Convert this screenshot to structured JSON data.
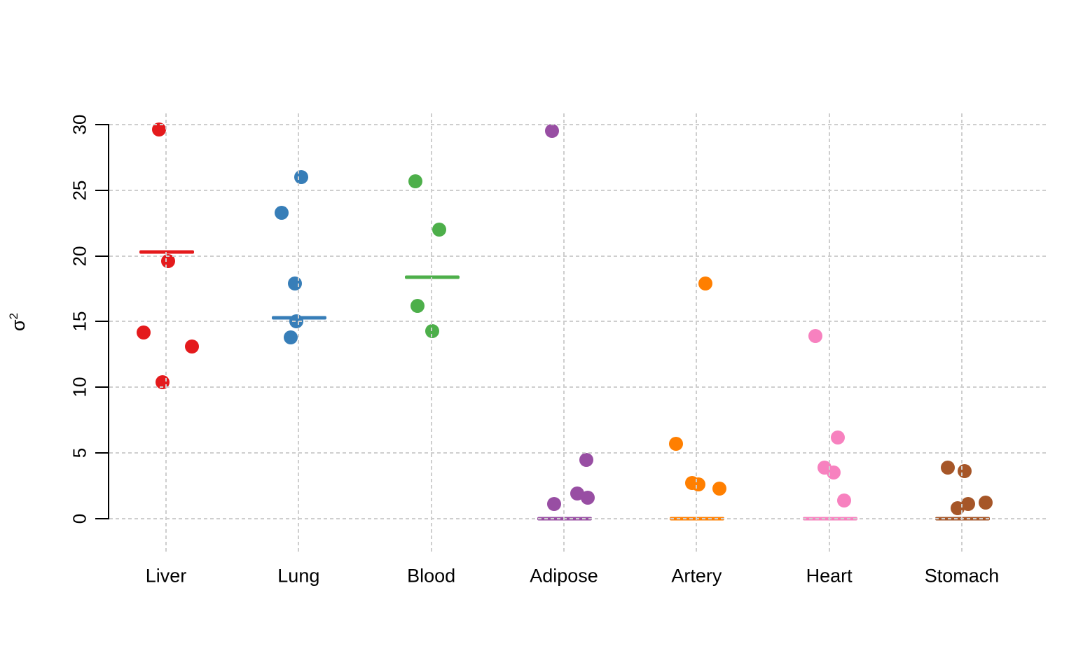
{
  "figure": {
    "background": "#ffffff",
    "grid_color": "#cecece",
    "axis_color": "#000000"
  },
  "y_axis": {
    "title_base": "σ",
    "title_exponent": "2",
    "tick_labels": [
      "0",
      "5",
      "10",
      "15",
      "20",
      "25",
      "30"
    ]
  },
  "chart_data": {
    "type": "scatter",
    "subtype": "stripchart",
    "title": "",
    "xlabel": "",
    "ylabel": "σ²",
    "ylim": [
      0,
      30
    ],
    "yticks": [
      0,
      5,
      10,
      15,
      20,
      25,
      30
    ],
    "grid": true,
    "grid_style": "dashed",
    "legend": "none",
    "categories": [
      "Liver",
      "Lung",
      "Blood",
      "Adipose",
      "Artery",
      "Heart",
      "Stomach"
    ],
    "groups": [
      {
        "name": "Liver",
        "color": "#E41A1C",
        "mean_line": 20.3,
        "points": [
          {
            "value": 29.6,
            "dx": -10
          },
          {
            "value": 19.6,
            "dx": 3
          },
          {
            "value": 14.2,
            "dx": -32
          },
          {
            "value": 13.1,
            "dx": 37
          },
          {
            "value": 10.4,
            "dx": -5
          }
        ]
      },
      {
        "name": "Lung",
        "color": "#377EB8",
        "mean_line": 15.3,
        "points": [
          {
            "value": 26.0,
            "dx": 4
          },
          {
            "value": 23.3,
            "dx": -24
          },
          {
            "value": 17.9,
            "dx": -5
          },
          {
            "value": 15.0,
            "dx": -3
          },
          {
            "value": 13.8,
            "dx": -11
          }
        ]
      },
      {
        "name": "Blood",
        "color": "#4DAF4A",
        "mean_line": 18.4,
        "points": [
          {
            "value": 25.7,
            "dx": -23
          },
          {
            "value": 22.0,
            "dx": 11
          },
          {
            "value": 16.2,
            "dx": -20
          },
          {
            "value": 14.3,
            "dx": 1
          }
        ]
      },
      {
        "name": "Adipose",
        "color": "#984EA3",
        "mean_line": 0,
        "points": [
          {
            "value": 29.5,
            "dx": -17
          },
          {
            "value": 4.5,
            "dx": 32
          },
          {
            "value": 1.9,
            "dx": 19
          },
          {
            "value": 1.6,
            "dx": 34
          },
          {
            "value": 1.1,
            "dx": -14
          }
        ]
      },
      {
        "name": "Artery",
        "color": "#FF7F00",
        "mean_line": 0,
        "points": [
          {
            "value": 17.9,
            "dx": 13
          },
          {
            "value": 5.7,
            "dx": -29
          },
          {
            "value": 2.7,
            "dx": -6
          },
          {
            "value": 2.6,
            "dx": 3
          },
          {
            "value": 2.3,
            "dx": 33
          }
        ]
      },
      {
        "name": "Heart",
        "color": "#F781BF",
        "mean_line": 0,
        "points": [
          {
            "value": 13.9,
            "dx": -20
          },
          {
            "value": 6.2,
            "dx": 12
          },
          {
            "value": 3.9,
            "dx": -7
          },
          {
            "value": 3.5,
            "dx": 6
          },
          {
            "value": 1.4,
            "dx": 21
          }
        ]
      },
      {
        "name": "Stomach",
        "color": "#A65628",
        "mean_line": 0,
        "points": [
          {
            "value": 3.9,
            "dx": -20
          },
          {
            "value": 3.6,
            "dx": 4
          },
          {
            "value": 1.2,
            "dx": 34
          },
          {
            "value": 1.1,
            "dx": 9
          },
          {
            "value": 0.8,
            "dx": -6
          }
        ]
      }
    ]
  }
}
